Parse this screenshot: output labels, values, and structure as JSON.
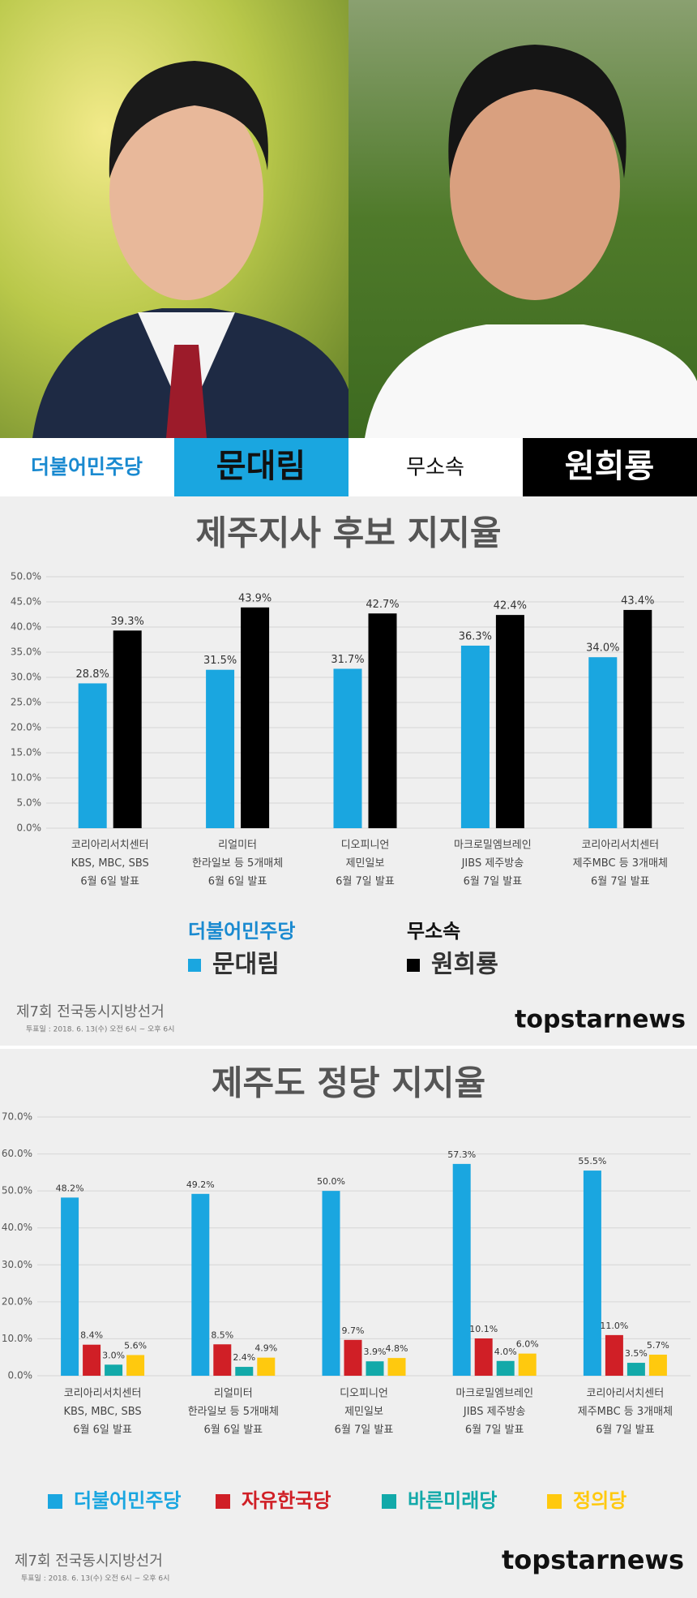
{
  "header": {
    "left_party": "더불어민주당",
    "left_candidate": "문대림",
    "right_party": "무소속",
    "right_candidate": "원희룡"
  },
  "footer": {
    "election": "제7회 전국동시지방선거",
    "date": "투표일 : 2018. 6. 13(수) 오전 6시 ~ 오후 6시",
    "brand": "topstarnews"
  },
  "chart_data": [
    {
      "type": "bar",
      "title": "제주지사 후보 지지율",
      "categories": [
        [
          "코리아리서치센터",
          "KBS, MBC, SBS",
          "6월 6일 발표"
        ],
        [
          "리얼미터",
          "한라일보 등 5개매체",
          "6월 6일 발표"
        ],
        [
          "디오피니언",
          "제민일보",
          "6월 7일 발표"
        ],
        [
          "마크로밀엠브레인",
          "JIBS 제주방송",
          "6월 7일 발표"
        ],
        [
          "코리아리서치센터",
          "제주MBC 등 3개매체",
          "6월 7일 발표"
        ]
      ],
      "series": [
        {
          "name": "문대림",
          "party": "더불어민주당",
          "color": "#1aa6e0",
          "values": [
            28.8,
            31.5,
            31.7,
            36.3,
            34.0
          ],
          "value_labels": [
            "28.8%",
            "31.5%",
            "31.7%",
            "36.3%",
            "34.0%"
          ]
        },
        {
          "name": "원희룡",
          "party": "무소속",
          "color": "#000000",
          "values": [
            39.3,
            43.9,
            42.7,
            42.4,
            43.4
          ],
          "value_labels": [
            "39.3%",
            "43.9%",
            "42.7%",
            "42.4%",
            "43.4%"
          ]
        }
      ],
      "ylim": [
        0,
        50
      ],
      "yticks": [
        {
          "value": 0,
          "label": "0.0%"
        },
        {
          "value": 5,
          "label": "5.0%"
        },
        {
          "value": 10,
          "label": "10.0%"
        },
        {
          "value": 15,
          "label": "15.0%"
        },
        {
          "value": 20,
          "label": "20.0%"
        },
        {
          "value": 25,
          "label": "25.0%"
        },
        {
          "value": 30,
          "label": "30.0%"
        },
        {
          "value": 35,
          "label": "35.0%"
        },
        {
          "value": 40,
          "label": "40.0%"
        },
        {
          "value": 45,
          "label": "45.0%"
        },
        {
          "value": 50,
          "label": "50.0%"
        }
      ],
      "grid": true
    },
    {
      "type": "bar",
      "title": "제주도 정당 지지율",
      "categories": [
        [
          "코리아리서치센터",
          "KBS, MBC, SBS",
          "6월 6일 발표"
        ],
        [
          "리얼미터",
          "한라일보 등 5개매체",
          "6월 6일 발표"
        ],
        [
          "디오피니언",
          "제민일보",
          "6월 7일 발표"
        ],
        [
          "마크로밀엠브레인",
          "JIBS 제주방송",
          "6월 7일 발표"
        ],
        [
          "코리아리서치센터",
          "제주MBC 등 3개매체",
          "6월 7일 발표"
        ]
      ],
      "series": [
        {
          "name": "더불어민주당",
          "color": "#1aa6e0",
          "values": [
            48.2,
            49.2,
            50.0,
            57.3,
            55.5
          ],
          "value_labels": [
            "48.2%",
            "49.2%",
            "50.0%",
            "57.3%",
            "55.5%"
          ]
        },
        {
          "name": "자유한국당",
          "color": "#d01f26",
          "values": [
            8.4,
            8.5,
            9.7,
            10.1,
            11.0
          ],
          "value_labels": [
            "8.4%",
            "8.5%",
            "9.7%",
            "10.1%",
            "11.0%"
          ]
        },
        {
          "name": "바른미래당",
          "color": "#12a9a9",
          "values": [
            3.0,
            2.4,
            3.9,
            4.0,
            3.5
          ],
          "value_labels": [
            "3.0%",
            "2.4%",
            "3.9%",
            "4.0%",
            "3.5%"
          ]
        },
        {
          "name": "정의당",
          "color": "#ffc90e",
          "values": [
            5.6,
            4.9,
            4.8,
            6.0,
            5.7
          ],
          "value_labels": [
            "5.6%",
            "4.9%",
            "4.8%",
            "6.0%",
            "5.7%"
          ]
        }
      ],
      "ylim": [
        0,
        70
      ],
      "yticks": [
        {
          "value": 0,
          "label": "0.0%"
        },
        {
          "value": 10,
          "label": "10.0%"
        },
        {
          "value": 20,
          "label": "20.0%"
        },
        {
          "value": 30,
          "label": "30.0%"
        },
        {
          "value": 40,
          "label": "40.0%"
        },
        {
          "value": 50,
          "label": "50.0%"
        },
        {
          "value": 60,
          "label": "60.0%"
        },
        {
          "value": 70,
          "label": "70.0%"
        }
      ],
      "grid": true
    }
  ]
}
